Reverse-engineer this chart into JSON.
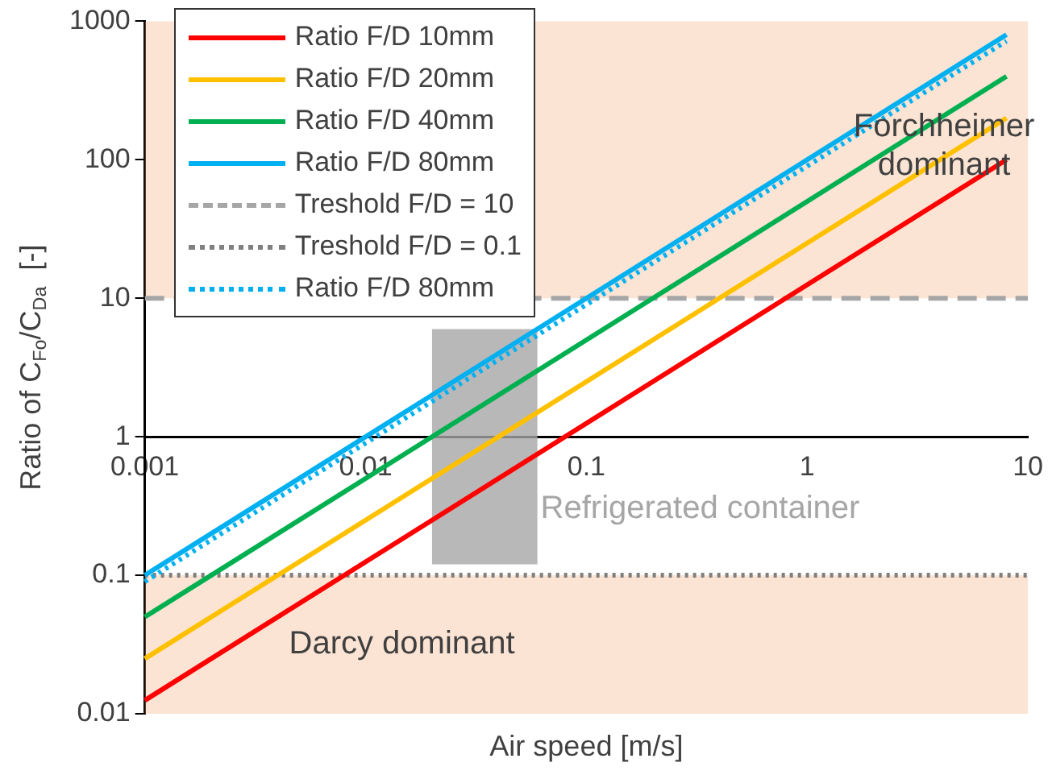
{
  "chart_data": {
    "type": "line",
    "xlabel": "Air speed [m/s]",
    "ylabel": "Ratio of C$_{Fo}$/C$_{Da}$  [-]",
    "log": "xy",
    "xlim": [
      0.001,
      10
    ],
    "xticks": [
      0.001,
      0.01,
      0.1,
      1,
      10
    ],
    "ylim": [
      0.01,
      1000
    ],
    "yticks": [
      0.01,
      0.1,
      1,
      10,
      100,
      1000
    ],
    "legend": "top left",
    "marker": "none",
    "line_style": "solid",
    "x": [
      0.001,
      8
    ],
    "series": [
      {
        "name": "Ratio F/D 10mm",
        "color": "#ff0000",
        "values": [
          0.0125,
          100
        ]
      },
      {
        "name": "Ratio F/D 20mm",
        "color": "#ffc000",
        "values": [
          0.025,
          200
        ]
      },
      {
        "name": "Ratio F/D 40mm",
        "color": "#00b050",
        "values": [
          0.05,
          400
        ]
      },
      {
        "name": "Ratio F/D 80mm",
        "color": "#00b0f0",
        "values": [
          0.1,
          800
        ]
      },
      {
        "name": "Ratio F/D 80mm",
        "color": "#00b0f0",
        "line_style": "dotted",
        "values": [
          0.09,
          720
        ]
      }
    ],
    "ref_lines": [
      {
        "axis": "y",
        "value": 10,
        "label": "Treshold F/D = 10",
        "color": "#a6a6a6",
        "line_style": "dashed"
      },
      {
        "axis": "y",
        "value": 0.1,
        "label": "Treshold F/D = 0.1",
        "color": "#808080",
        "line_style": "dotted"
      }
    ],
    "bands": [
      {
        "axis": "y",
        "from": 10,
        "to": 1000,
        "label": "Forchheimer dominant",
        "color": "#f4b183"
      },
      {
        "axis": "y",
        "from": 0.01,
        "to": 0.1,
        "label": "Darcy dominant",
        "color": "#f4b183"
      },
      {
        "axis": "x",
        "from": 0.02,
        "to": 0.06,
        "label": "Refrigerated container",
        "color": "#a6a6a6"
      }
    ]
  }
}
